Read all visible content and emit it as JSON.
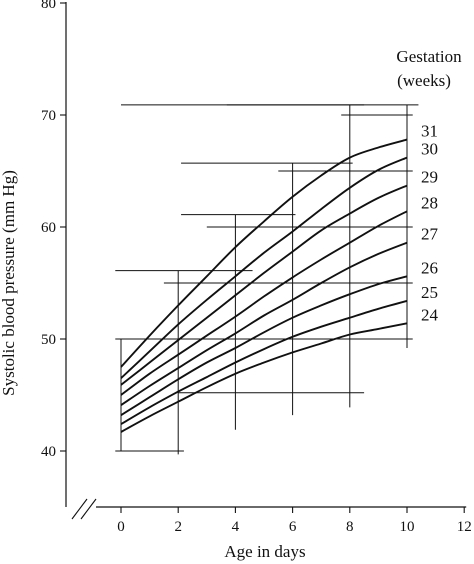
{
  "chart_data": {
    "type": "line",
    "xlabel": "Age in days",
    "ylabel": "Systolic blood pressure (mm Hg)",
    "xlim": [
      -2,
      12
    ],
    "ylim": [
      36,
      80
    ],
    "x_ticks": [
      0,
      2,
      4,
      6,
      8,
      10,
      12
    ],
    "y_ticks": [
      40,
      50,
      60,
      70,
      80
    ],
    "axis_break": "x",
    "legend_title": [
      "Gestation",
      "(weeks)"
    ],
    "legend_placement": "top-right",
    "grid": false,
    "colors": {
      "line": "#111111",
      "axis": "#111111"
    },
    "x": [
      0,
      1,
      2,
      3,
      4,
      5,
      6,
      7,
      8,
      9,
      10
    ],
    "series": [
      {
        "name": "24",
        "values": [
          41.7,
          43.1,
          44.4,
          45.7,
          46.9,
          47.9,
          48.8,
          49.6,
          50.4,
          50.9,
          51.4
        ]
      },
      {
        "name": "25",
        "values": [
          42.4,
          43.9,
          45.3,
          46.6,
          47.9,
          49.1,
          50.2,
          51.1,
          51.9,
          52.7,
          53.4
        ]
      },
      {
        "name": "26",
        "values": [
          43.2,
          44.8,
          46.4,
          47.9,
          49.2,
          50.6,
          51.9,
          53.0,
          54.0,
          54.9,
          55.6
        ]
      },
      {
        "name": "27",
        "values": [
          44.1,
          45.8,
          47.4,
          49.0,
          50.5,
          52.1,
          53.5,
          55.0,
          56.4,
          57.6,
          58.6
        ]
      },
      {
        "name": "28",
        "values": [
          45.0,
          46.9,
          48.6,
          50.3,
          52.0,
          53.8,
          55.5,
          57.1,
          58.6,
          60.1,
          61.4
        ]
      },
      {
        "name": "29",
        "values": [
          45.9,
          47.9,
          49.9,
          51.9,
          53.9,
          55.9,
          57.8,
          59.7,
          61.2,
          62.6,
          63.7
        ]
      },
      {
        "name": "30",
        "values": [
          46.5,
          48.9,
          51.3,
          53.5,
          55.6,
          57.7,
          59.6,
          61.6,
          63.5,
          65.1,
          66.2
        ]
      },
      {
        "name": "31",
        "values": [
          47.5,
          50.3,
          53.0,
          55.6,
          58.2,
          60.5,
          62.7,
          64.6,
          66.2,
          67.1,
          67.8
        ]
      }
    ],
    "error_bars": [
      {
        "x": 0,
        "y": 45.0,
        "xlow": -0.2,
        "xhigh": 2.2,
        "ylow": 40.0,
        "yhigh": 50.0,
        "end": "low"
      },
      {
        "x": 2,
        "y": 48.5,
        "xlow": -0.2,
        "xhigh": 4.6,
        "ylow": 39.7,
        "yhigh": 56.1,
        "end": "high"
      },
      {
        "x": 4,
        "y": 52.0,
        "xlow": 2.1,
        "xhigh": 6.1,
        "ylow": 41.9,
        "yhigh": 61.1,
        "end": "high"
      },
      {
        "x": 6,
        "y": 55.0,
        "xlow": 2.1,
        "xhigh": 8.1,
        "ylow": 43.2,
        "yhigh": 65.7,
        "end": "high"
      },
      {
        "x": 8,
        "y": 58.0,
        "xlow": 3.7,
        "xhigh": 8.5,
        "ylow": 43.9,
        "yhigh": 70.9,
        "end": "high"
      },
      {
        "x": 10,
        "y": 60.0,
        "xlow": 0.0,
        "xhigh": 10.4,
        "ylow": 49.2,
        "yhigh": 70.9,
        "end": "high"
      }
    ],
    "center_lines": [
      {
        "y": 45.2,
        "xlow": 2.0,
        "xhigh": 8.5
      },
      {
        "y": 50.0,
        "xlow": -0.2,
        "xhigh": 10.2
      },
      {
        "y": 55.0,
        "xlow": 1.5,
        "xhigh": 10.2
      },
      {
        "y": 60.0,
        "xlow": 3.0,
        "xhigh": 10.2
      },
      {
        "y": 65.0,
        "xlow": 5.5,
        "xhigh": 10.2
      },
      {
        "y": 70.0,
        "xlow": 7.7,
        "xhigh": 10.2
      }
    ]
  }
}
